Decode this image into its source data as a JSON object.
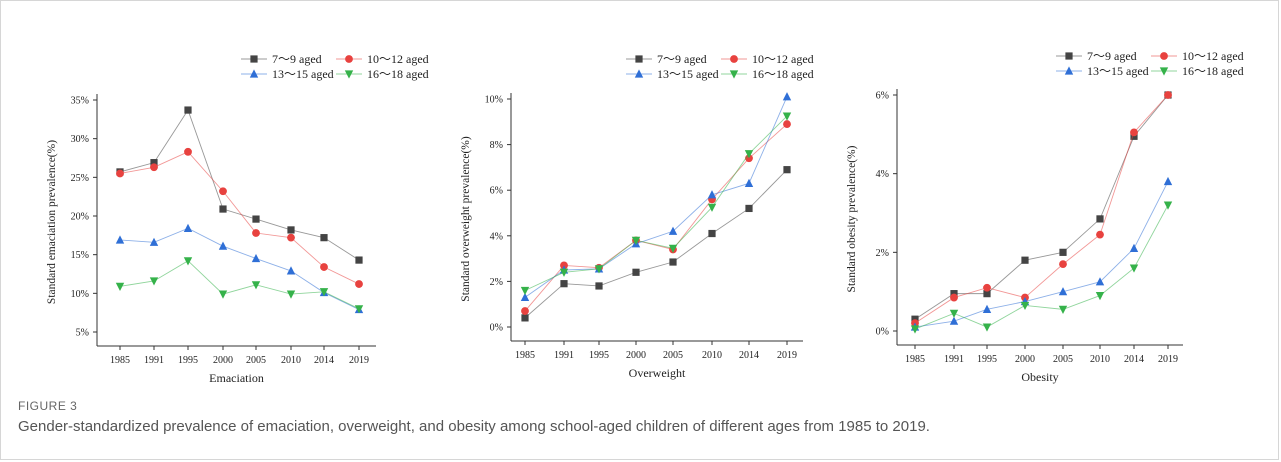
{
  "figure": {
    "label": "FIGURE 3",
    "caption": "Gender-standardized prevalence of emaciation, overweight, and obesity among school-aged children of different ages from 1985 to 2019."
  },
  "legend": {
    "entries": [
      {
        "name": "7～9 aged",
        "color": "#444444",
        "marker": "square"
      },
      {
        "name": "10～12 aged",
        "color": "#e8423f",
        "marker": "circle"
      },
      {
        "name": "13～15 aged",
        "color": "#2f6fd6",
        "marker": "triangle-up"
      },
      {
        "name": "16～18 aged",
        "color": "#35b24a",
        "marker": "triangle-down"
      }
    ]
  },
  "chart_data": [
    {
      "type": "line",
      "categories": [
        "1985",
        "1991",
        "1995",
        "2000",
        "2005",
        "2010",
        "2014",
        "2019"
      ],
      "xlabel": "Emaciation",
      "ylabel": "Standard emaciation prevalence(%)",
      "ylim": [
        5,
        35
      ],
      "yticks": [
        "5%",
        "10%",
        "15%",
        "20%",
        "25%",
        "30%",
        "35%"
      ],
      "series": [
        {
          "name": "7～9 aged",
          "values": [
            25.7,
            26.9,
            33.7,
            20.9,
            19.6,
            18.2,
            17.2,
            14.3
          ]
        },
        {
          "name": "10～12 aged",
          "values": [
            25.5,
            26.3,
            28.3,
            23.2,
            17.8,
            17.2,
            13.4,
            11.2
          ]
        },
        {
          "name": "13～15 aged",
          "values": [
            16.9,
            16.6,
            18.4,
            16.1,
            14.5,
            12.9,
            10.1,
            7.9
          ]
        },
        {
          "name": "16～18 aged",
          "values": [
            10.9,
            11.6,
            14.2,
            9.9,
            11.1,
            9.9,
            10.2,
            8.0
          ]
        }
      ]
    },
    {
      "type": "line",
      "categories": [
        "1985",
        "1991",
        "1995",
        "2000",
        "2005",
        "2010",
        "2014",
        "2019"
      ],
      "xlabel": "Overweight",
      "ylabel": "Standard overweight prevalence(%)",
      "ylim": [
        0,
        10
      ],
      "yticks": [
        "0%",
        "2%",
        "4%",
        "6%",
        "8%",
        "10%"
      ],
      "series": [
        {
          "name": "7～9 aged",
          "values": [
            0.4,
            1.9,
            1.8,
            2.4,
            2.85,
            4.1,
            5.2,
            6.9
          ]
        },
        {
          "name": "10～12 aged",
          "values": [
            0.7,
            2.7,
            2.6,
            3.8,
            3.4,
            5.6,
            7.4,
            8.9
          ]
        },
        {
          "name": "13～15 aged",
          "values": [
            1.3,
            2.5,
            2.55,
            3.65,
            4.2,
            5.8,
            6.3,
            10.1
          ]
        },
        {
          "name": "16～18 aged",
          "values": [
            1.6,
            2.4,
            2.55,
            3.8,
            3.45,
            5.25,
            7.6,
            9.25
          ]
        }
      ]
    },
    {
      "type": "line",
      "categories": [
        "1985",
        "1991",
        "1995",
        "2000",
        "2005",
        "2010",
        "2014",
        "2019"
      ],
      "xlabel": "Obesity",
      "ylabel": "Standard obesity prevalence(%)",
      "ylim": [
        0,
        6
      ],
      "yticks": [
        "0%",
        "2%",
        "4%",
        "6%"
      ],
      "series": [
        {
          "name": "7～9 aged",
          "values": [
            0.3,
            0.95,
            0.95,
            1.8,
            2.0,
            2.85,
            4.95,
            6.0
          ]
        },
        {
          "name": "10～12 aged",
          "values": [
            0.2,
            0.85,
            1.1,
            0.85,
            1.7,
            2.45,
            5.05,
            6.0
          ]
        },
        {
          "name": "13～15 aged",
          "values": [
            0.1,
            0.25,
            0.55,
            0.75,
            1.0,
            1.25,
            2.1,
            3.8
          ]
        },
        {
          "name": "16～18 aged",
          "values": [
            0.05,
            0.45,
            0.1,
            0.65,
            0.55,
            0.9,
            1.6,
            3.2
          ]
        }
      ]
    }
  ]
}
